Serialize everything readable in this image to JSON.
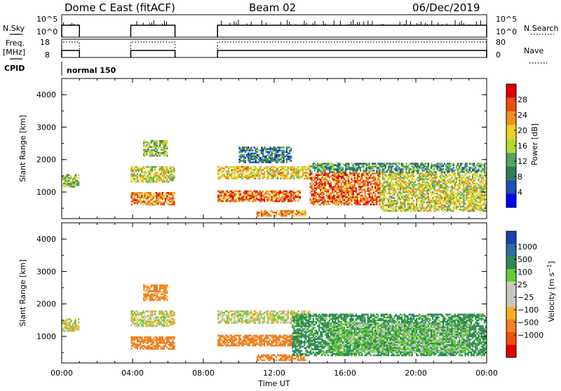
{
  "header": {
    "station": "Dome C East (fitACF)",
    "beam": "Beam 02",
    "date": "06/Dec/2019"
  },
  "panels": {
    "nsky": {
      "label": "N.Sky",
      "ticks": [
        "10^5",
        "10^0"
      ],
      "right_label": "N.Search",
      "right_ticks": [
        "10^5",
        "10^0"
      ]
    },
    "freq": {
      "label_line1": "Freq.",
      "label_line2": "[MHz]",
      "ticks": [
        "18",
        "8"
      ],
      "right_label": "Nave",
      "right_ticks": [
        "80",
        "0"
      ]
    },
    "cpid": {
      "label": "CPID",
      "value": "normal 150"
    }
  },
  "time_axis": {
    "label": "Time UT",
    "ticks": [
      "00:00",
      "04:00",
      "08:00",
      "12:00",
      "16:00",
      "20:00",
      "00:00"
    ]
  },
  "colors": {
    "power": [
      "#0000ff",
      "#1e50b4",
      "#2e7d5a",
      "#5aa064",
      "#b4d832",
      "#f0d020",
      "#f09020",
      "#e85010",
      "#e00000"
    ],
    "velocity": [
      "#e00000",
      "#f05010",
      "#f08020",
      "#f8b020",
      "#c8c8c0",
      "#c8c8c0",
      "#66cc33",
      "#2e8b57",
      "#2e6e9e",
      "#1e40b4"
    ]
  },
  "chart_data": [
    {
      "type": "heatmap",
      "title": "",
      "xlabel": "Time UT",
      "ylabel": "Slant Range [km]",
      "xlim": [
        "00:00",
        "24:00"
      ],
      "ylim": [
        180,
        4500
      ],
      "yticks": [
        "1000",
        "2000",
        "3000",
        "4000"
      ],
      "colorbar": {
        "label": "Power [dB]",
        "ticks": [
          "4",
          "8",
          "12",
          "16",
          "20",
          "24",
          "28"
        ],
        "range": [
          0,
          30
        ]
      },
      "echo_regions": [
        {
          "t_start": 0.0,
          "t_end": 1.0,
          "r_min": 1150,
          "r_max": 1550,
          "value": 14
        },
        {
          "t_start": 3.9,
          "t_end": 6.4,
          "r_min": 1300,
          "r_max": 1800,
          "value": 16
        },
        {
          "t_start": 3.9,
          "t_end": 6.4,
          "r_min": 600,
          "r_max": 1000,
          "value": 22
        },
        {
          "t_start": 4.6,
          "t_end": 6.0,
          "r_min": 2100,
          "r_max": 2600,
          "value": 14
        },
        {
          "t_start": 8.8,
          "t_end": 14.0,
          "r_min": 1400,
          "r_max": 1800,
          "value": 18
        },
        {
          "t_start": 8.8,
          "t_end": 13.5,
          "r_min": 700,
          "r_max": 1050,
          "value": 24
        },
        {
          "t_start": 10.0,
          "t_end": 13.0,
          "r_min": 1900,
          "r_max": 2400,
          "value": 8
        },
        {
          "t_start": 11.0,
          "t_end": 13.8,
          "r_min": 250,
          "r_max": 450,
          "value": 22
        },
        {
          "t_start": 14.0,
          "t_end": 18.0,
          "r_min": 600,
          "r_max": 1600,
          "value": 24
        },
        {
          "t_start": 18.0,
          "t_end": 24.0,
          "r_min": 400,
          "r_max": 1600,
          "value": 16
        },
        {
          "t_start": 14.0,
          "t_end": 24.0,
          "r_min": 1600,
          "r_max": 1900,
          "value": 10
        }
      ]
    },
    {
      "type": "heatmap",
      "title": "",
      "xlabel": "Time UT",
      "ylabel": "Slant Range [km]",
      "xlim": [
        "00:00",
        "24:00"
      ],
      "ylim": [
        180,
        4500
      ],
      "yticks": [
        "1000",
        "2000",
        "3000",
        "4000"
      ],
      "colorbar": {
        "label": "Velocity [m s^-1]",
        "ticks": [
          "1000",
          "500",
          "100",
          "25",
          "−25",
          "−100",
          "−500",
          "−1000"
        ],
        "range": [
          -1000,
          1000
        ]
      },
      "echo_regions": [
        {
          "t_start": 0.0,
          "t_end": 1.0,
          "r_min": 1150,
          "r_max": 1550,
          "value": 0
        },
        {
          "t_start": 3.9,
          "t_end": 6.4,
          "r_min": 1300,
          "r_max": 1800,
          "value": 0
        },
        {
          "t_start": 3.9,
          "t_end": 6.4,
          "r_min": 600,
          "r_max": 1000,
          "value": -200
        },
        {
          "t_start": 4.6,
          "t_end": 6.0,
          "r_min": 2100,
          "r_max": 2600,
          "value": -150
        },
        {
          "t_start": 8.8,
          "t_end": 14.0,
          "r_min": 1400,
          "r_max": 1800,
          "value": 0
        },
        {
          "t_start": 8.8,
          "t_end": 13.5,
          "r_min": 700,
          "r_max": 1050,
          "value": -250
        },
        {
          "t_start": 11.0,
          "t_end": 13.8,
          "r_min": 250,
          "r_max": 450,
          "value": -200
        },
        {
          "t_start": 13.0,
          "t_end": 24.0,
          "r_min": 400,
          "r_max": 1700,
          "value": 150
        },
        {
          "t_start": 15.0,
          "t_end": 23.0,
          "r_min": 500,
          "r_max": 1400,
          "value": 60
        }
      ]
    }
  ]
}
